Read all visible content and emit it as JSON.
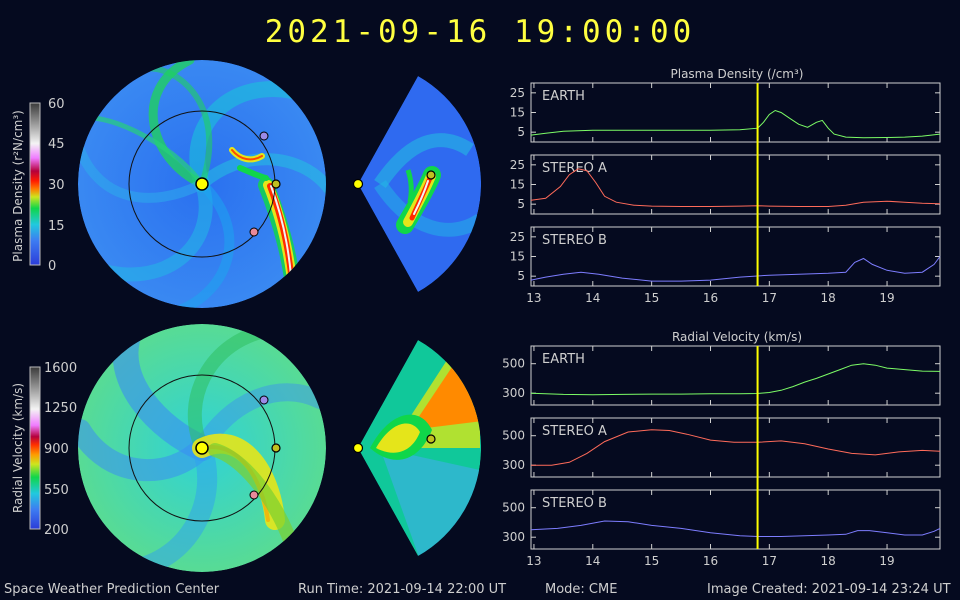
{
  "header": {
    "title": "2021-09-16  19:00:00"
  },
  "colors": {
    "background": "#050a1f",
    "title": "#ffff40",
    "earth": "#7CFC66",
    "stereo_a": "#FF6B5A",
    "stereo_b": "#7D7DFF",
    "time_marker": "#ffff00"
  },
  "colorbars": {
    "density": {
      "label": "Plasma Density (r²N/cm³)",
      "ticks": [
        "60",
        "45",
        "30",
        "15",
        "0"
      ]
    },
    "velocity": {
      "label": "Radial Velocity (km/s)",
      "ticks": [
        "1600",
        "1250",
        "900",
        "550",
        "200"
      ]
    }
  },
  "panels": {
    "density": {
      "title": "Plasma Density (/cm³)"
    },
    "velocity": {
      "title": "Radial Velocity (km/s)"
    }
  },
  "x_ticks": [
    "13",
    "14",
    "15",
    "16",
    "17",
    "18",
    "19"
  ],
  "chart_data": [
    {
      "type": "line",
      "title": "Plasma Density (/cm³)",
      "xlabel": "",
      "ylabel": "",
      "xlim": [
        12.95,
        19.9
      ],
      "ylim": [
        0,
        30
      ],
      "yticks": [
        5,
        15,
        25
      ],
      "time_marker_x": 16.8,
      "series": [
        {
          "name": "EARTH",
          "color": "#7CFC66",
          "x": [
            12.95,
            13.2,
            13.5,
            14,
            14.5,
            15,
            15.5,
            16,
            16.5,
            16.8,
            16.9,
            17.0,
            17.1,
            17.2,
            17.35,
            17.5,
            17.65,
            17.8,
            17.9,
            18.0,
            18.1,
            18.3,
            18.6,
            19,
            19.3,
            19.6,
            19.9
          ],
          "y": [
            3.5,
            4.5,
            5.5,
            6,
            6,
            6,
            6,
            6,
            6.2,
            7,
            10,
            14,
            16,
            15,
            12,
            9,
            7.5,
            10,
            11,
            7,
            4,
            2.5,
            2.2,
            2.3,
            2.5,
            3,
            4
          ]
        },
        {
          "name": "STEREO A",
          "color": "#FF6B5A",
          "x": [
            12.95,
            13.2,
            13.45,
            13.6,
            13.75,
            13.9,
            14.05,
            14.2,
            14.4,
            14.7,
            15,
            15.5,
            16,
            16.5,
            16.8,
            17,
            17.5,
            18,
            18.3,
            18.6,
            19,
            19.3,
            19.6,
            19.9
          ],
          "y": [
            7,
            8,
            14,
            20,
            23,
            22,
            16,
            9,
            6,
            4.5,
            4,
            3.8,
            3.8,
            4,
            4.2,
            4,
            3.8,
            3.8,
            4.5,
            6,
            6.5,
            6,
            5.5,
            5.2
          ]
        },
        {
          "name": "STEREO B",
          "color": "#7D7DFF",
          "x": [
            12.95,
            13.2,
            13.5,
            13.8,
            14.1,
            14.5,
            15,
            15.5,
            16,
            16.5,
            17,
            17.5,
            18,
            18.3,
            18.45,
            18.6,
            18.75,
            19,
            19.3,
            19.6,
            19.8,
            19.9
          ],
          "y": [
            3,
            4.5,
            6,
            7,
            6,
            4,
            2.5,
            2.5,
            3,
            4.5,
            5.5,
            6,
            6.5,
            7,
            12,
            14,
            11,
            8,
            6.5,
            7,
            11,
            15
          ]
        }
      ]
    },
    {
      "type": "line",
      "title": "Radial Velocity (km/s)",
      "xlabel": "",
      "ylabel": "",
      "xlim": [
        12.95,
        19.9
      ],
      "ylim": [
        220,
        620
      ],
      "yticks": [
        300,
        500
      ],
      "time_marker_x": 16.8,
      "series": [
        {
          "name": "EARTH",
          "color": "#7CFC66",
          "x": [
            12.95,
            13.5,
            14,
            14.5,
            15,
            15.5,
            16,
            16.5,
            16.8,
            17,
            17.2,
            17.4,
            17.6,
            17.8,
            18,
            18.2,
            18.4,
            18.6,
            18.8,
            19,
            19.3,
            19.6,
            19.9
          ],
          "y": [
            300,
            292,
            290,
            292,
            294,
            294,
            296,
            296,
            298,
            305,
            320,
            345,
            375,
            400,
            430,
            460,
            490,
            500,
            490,
            470,
            460,
            450,
            448
          ]
        },
        {
          "name": "STEREO A",
          "color": "#FF6B5A",
          "x": [
            12.95,
            13.3,
            13.6,
            13.9,
            14.2,
            14.6,
            15,
            15.3,
            15.6,
            16,
            16.4,
            16.8,
            17.2,
            17.6,
            18,
            18.4,
            18.8,
            19.2,
            19.6,
            19.9
          ],
          "y": [
            300,
            300,
            320,
            380,
            460,
            525,
            540,
            535,
            510,
            470,
            455,
            455,
            465,
            445,
            410,
            380,
            370,
            390,
            400,
            395
          ]
        },
        {
          "name": "STEREO B",
          "color": "#7D7DFF",
          "x": [
            12.95,
            13.4,
            13.8,
            14.2,
            14.6,
            15,
            15.5,
            16,
            16.5,
            16.8,
            17.2,
            17.6,
            18,
            18.3,
            18.5,
            18.7,
            19,
            19.3,
            19.6,
            19.8,
            19.9
          ],
          "y": [
            350,
            360,
            380,
            410,
            405,
            380,
            360,
            330,
            310,
            305,
            305,
            310,
            315,
            320,
            345,
            345,
            330,
            315,
            315,
            340,
            360
          ]
        }
      ]
    }
  ],
  "footer": {
    "org": "Space Weather Prediction Center",
    "run_time": "Run Time: 2021-09-14 22:00 UT",
    "mode": "Mode: CME",
    "created": "Image Created: 2021-09-14 23:24 UT"
  }
}
